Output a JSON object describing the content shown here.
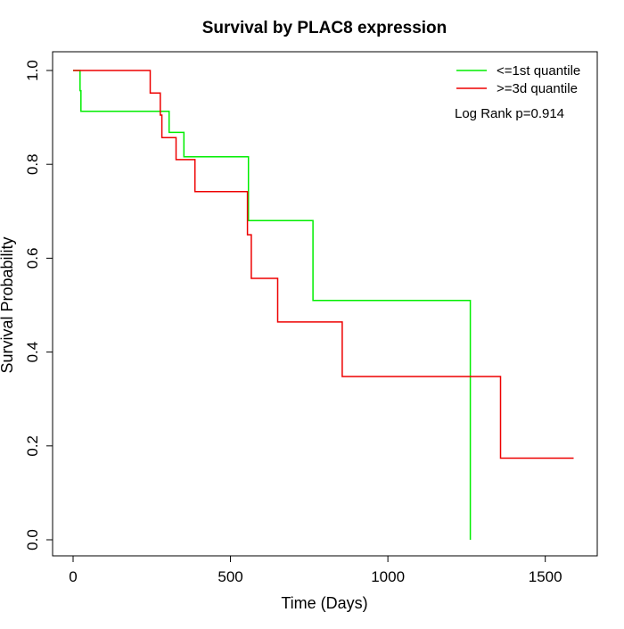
{
  "chart_data": {
    "type": "line",
    "title": "Survival by PLAC8 expression",
    "xlabel": "Time (Days)",
    "ylabel": "Survival Probability",
    "xlim": [
      0,
      1600
    ],
    "ylim": [
      0,
      1.0
    ],
    "x_ticks": [
      0,
      500,
      1000,
      1500
    ],
    "x_tick_labels": [
      "0",
      "500",
      "1000",
      "1500"
    ],
    "y_ticks": [
      0.0,
      0.2,
      0.4,
      0.6,
      0.8,
      1.0
    ],
    "y_tick_labels": [
      "0.0",
      "0.2",
      "0.4",
      "0.6",
      "0.8",
      "1.0"
    ],
    "grid": false,
    "step": true,
    "legend_position": "top-right",
    "annotation": "Log Rank p=0.914",
    "series": [
      {
        "name": "<=1st quantile",
        "color": "#00ee00",
        "x": [
          0,
          22,
          22,
          25,
          25,
          305,
          305,
          352,
          352,
          557,
          557,
          762,
          762,
          1262,
          1262
        ],
        "y": [
          1.0,
          1.0,
          0.957,
          0.957,
          0.913,
          0.913,
          0.868,
          0.868,
          0.816,
          0.816,
          0.68,
          0.68,
          0.51,
          0.51,
          0.0
        ]
      },
      {
        "name": ">=3d quantile",
        "color": "#ee0000",
        "x": [
          0,
          245,
          245,
          277,
          277,
          282,
          282,
          327,
          327,
          387,
          387,
          554,
          554,
          566,
          566,
          650,
          650,
          855,
          855,
          1358,
          1358,
          1590
        ],
        "y": [
          1.0,
          1.0,
          0.952,
          0.952,
          0.905,
          0.905,
          0.857,
          0.857,
          0.81,
          0.81,
          0.742,
          0.742,
          0.65,
          0.65,
          0.557,
          0.557,
          0.464,
          0.464,
          0.348,
          0.348,
          0.174,
          0.174
        ]
      }
    ]
  }
}
